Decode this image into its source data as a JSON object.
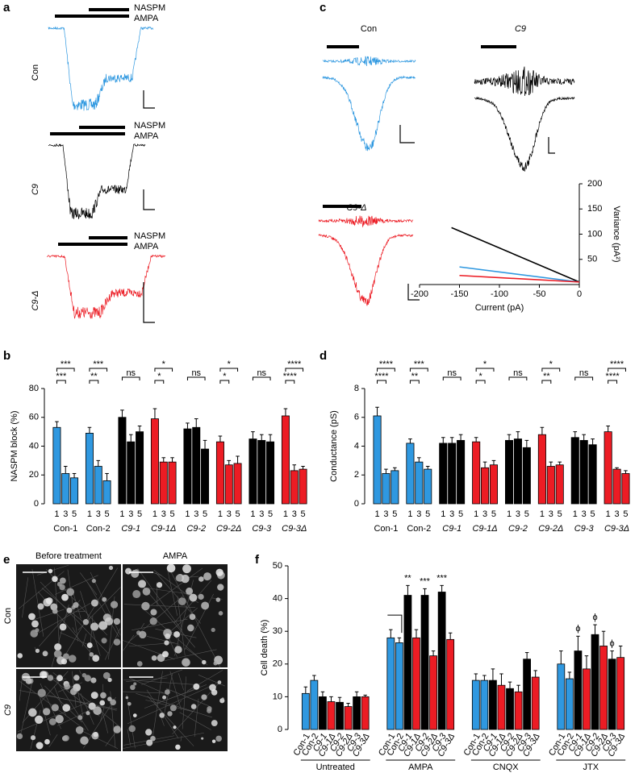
{
  "panel_labels": [
    "a",
    "b",
    "c",
    "d",
    "e",
    "f"
  ],
  "traces_a": [
    {
      "top": "NASPM",
      "bottom": "AMPA",
      "name": "Con"
    },
    {
      "top": "NASPM",
      "bottom": "AMPA",
      "name": "C9"
    },
    {
      "top": "NASPM",
      "bottom": "AMPA",
      "name": "C9-Δ"
    }
  ],
  "traces_c": [
    "Con",
    "C9",
    "C9-Δ"
  ],
  "images_e": {
    "columns": [
      "Before treatment",
      "AMPA"
    ],
    "rows": [
      "Con",
      "C9"
    ]
  },
  "chart_data": [
    {
      "type": "line",
      "xlabel": "Current (pA)",
      "ylabel": "Variance (pA²)",
      "xlim": [
        -200,
        0
      ],
      "xticks": [
        -200,
        -150,
        -100,
        -50,
        0
      ],
      "ylim": [
        0,
        200
      ],
      "yticks": [
        50,
        100,
        150,
        200
      ],
      "series": [
        {
          "color": "#000000",
          "x": [
            -160,
            0
          ],
          "values": [
            113,
            5
          ]
        },
        {
          "color": "#2f98e0",
          "x": [
            -150,
            0
          ],
          "values": [
            35,
            5
          ]
        },
        {
          "color": "#ec1c24",
          "x": [
            -150,
            0
          ],
          "values": [
            18,
            5
          ]
        }
      ]
    },
    {
      "type": "grouped_bar",
      "ylabel": "NASPM block (%)",
      "ylim": [
        0,
        80
      ],
      "yticks": [
        0,
        20,
        40,
        60,
        80
      ],
      "categories": [
        "1",
        "3",
        "5"
      ],
      "groups": [
        {
          "name": "Con-1",
          "color": "#2f98e0",
          "values": [
            53,
            21,
            18
          ],
          "errors": [
            4,
            5,
            3
          ],
          "significance": [
            "***",
            "***"
          ]
        },
        {
          "name": "Con-2",
          "color": "#2f98e0",
          "values": [
            49,
            26,
            16
          ],
          "errors": [
            4,
            4,
            5
          ],
          "significance": [
            "***",
            "**"
          ]
        },
        {
          "name": "C9-1",
          "color": "#000000",
          "values": [
            60,
            43,
            50
          ],
          "errors": [
            5,
            5,
            4
          ],
          "significance": [
            "ns"
          ]
        },
        {
          "name": "C9-1Δ",
          "color": "#ec1c24",
          "values": [
            59,
            29,
            29
          ],
          "errors": [
            7,
            3,
            3
          ],
          "significance": [
            "*",
            "*"
          ]
        },
        {
          "name": "C9-2",
          "color": "#000000",
          "values": [
            52,
            53,
            38
          ],
          "errors": [
            4,
            6,
            6
          ],
          "significance": [
            "ns"
          ]
        },
        {
          "name": "C9-2Δ",
          "color": "#ec1c24",
          "values": [
            43,
            27,
            28
          ],
          "errors": [
            4,
            3,
            5
          ],
          "significance": [
            "*",
            "*"
          ]
        },
        {
          "name": "C9-3",
          "color": "#000000",
          "values": [
            45,
            44,
            43
          ],
          "errors": [
            5,
            4,
            5
          ],
          "significance": [
            "ns"
          ]
        },
        {
          "name": "C9-3Δ",
          "color": "#ec1c24",
          "values": [
            61,
            23,
            24
          ],
          "errors": [
            5,
            4,
            2
          ],
          "significance": [
            "****",
            "****"
          ]
        }
      ]
    },
    {
      "type": "grouped_bar",
      "ylabel": "Conductance (pS)",
      "ylim": [
        0,
        8
      ],
      "yticks": [
        0,
        2,
        4,
        6,
        8
      ],
      "categories": [
        "1",
        "3",
        "5"
      ],
      "groups": [
        {
          "name": "Con-1",
          "color": "#2f98e0",
          "values": [
            6.1,
            2.1,
            2.3
          ],
          "errors": [
            0.6,
            0.3,
            0.2
          ],
          "significance": [
            "****",
            "****"
          ]
        },
        {
          "name": "Con-2",
          "color": "#2f98e0",
          "values": [
            4.2,
            2.9,
            2.4
          ],
          "errors": [
            0.3,
            0.3,
            0.2
          ],
          "significance": [
            "***",
            "**"
          ]
        },
        {
          "name": "C9-1",
          "color": "#000000",
          "values": [
            4.2,
            4.2,
            4.4
          ],
          "errors": [
            0.4,
            0.4,
            0.4
          ],
          "significance": [
            "ns"
          ]
        },
        {
          "name": "C9-1Δ",
          "color": "#ec1c24",
          "values": [
            4.3,
            2.5,
            2.7
          ],
          "errors": [
            0.3,
            0.4,
            0.3
          ],
          "significance": [
            "*",
            "*"
          ]
        },
        {
          "name": "C9-2",
          "color": "#000000",
          "values": [
            4.4,
            4.5,
            3.9
          ],
          "errors": [
            0.4,
            0.5,
            0.5
          ],
          "significance": [
            "ns"
          ]
        },
        {
          "name": "C9-2Δ",
          "color": "#ec1c24",
          "values": [
            4.8,
            2.6,
            2.7
          ],
          "errors": [
            0.5,
            0.3,
            0.2
          ],
          "significance": [
            "*",
            "**"
          ]
        },
        {
          "name": "C9-3",
          "color": "#000000",
          "values": [
            4.6,
            4.4,
            4.1
          ],
          "errors": [
            0.4,
            0.4,
            0.4
          ],
          "significance": [
            "ns"
          ]
        },
        {
          "name": "C9-3Δ",
          "color": "#ec1c24",
          "values": [
            5.0,
            2.4,
            2.1
          ],
          "errors": [
            0.4,
            0.1,
            0.2
          ],
          "significance": [
            "****",
            "****"
          ]
        }
      ]
    },
    {
      "type": "grouped_bar",
      "ylabel": "Cell death (%)",
      "ylim": [
        0,
        50
      ],
      "yticks": [
        0,
        10,
        20,
        30,
        40,
        50
      ],
      "categories": [
        "Con-1",
        "Con-2",
        "C9-1",
        "C9-1Δ",
        "C9-2",
        "C9-2Δ",
        "C9-3",
        "C9-3Δ"
      ],
      "category_colors": [
        "#2f98e0",
        "#2f98e0",
        "#000000",
        "#ec1c24",
        "#000000",
        "#ec1c24",
        "#000000",
        "#ec1c24"
      ],
      "groups": [
        {
          "name": "Untreated",
          "values": [
            11,
            15,
            10,
            8.5,
            8.3,
            7,
            10,
            10
          ],
          "errors": [
            2,
            1.5,
            1.5,
            1.5,
            1.5,
            1,
            1.5,
            0.5
          ]
        },
        {
          "name": "AMPA",
          "values": [
            28,
            26.5,
            41,
            28,
            41,
            22.5,
            42,
            27.5
          ],
          "errors": [
            2.5,
            1.5,
            3,
            2.5,
            2,
            1.5,
            2,
            2
          ],
          "significance": [
            "**",
            "***",
            "***"
          ]
        },
        {
          "name": "CNQX",
          "values": [
            15,
            15,
            15,
            13.5,
            12.5,
            11.5,
            21.5,
            16
          ],
          "errors": [
            2,
            1.5,
            3.5,
            3.5,
            2,
            2,
            2,
            2
          ]
        },
        {
          "name": "JTX",
          "values": [
            20,
            15.5,
            24,
            18.5,
            29,
            25.5,
            21.5,
            22
          ],
          "errors": [
            4,
            2,
            4.5,
            4,
            3,
            4.5,
            2.5,
            3.5
          ],
          "significance": [
            "ϕ",
            "ϕ",
            "ϕ"
          ]
        }
      ]
    }
  ]
}
